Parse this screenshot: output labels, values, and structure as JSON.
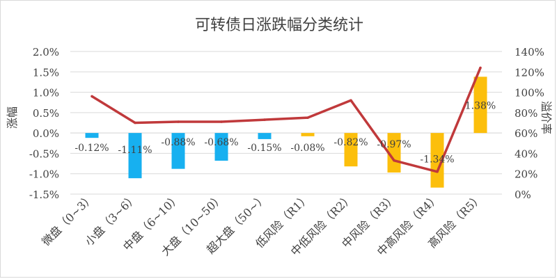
{
  "chart_data": {
    "type": "bar",
    "title": "可转债日涨跌幅分类统计",
    "ylabel": "涨幅",
    "y2label": "溢价率",
    "categories": [
      "微盘（0~3）",
      "小盘（3~6）",
      "中盘（6~10）",
      "大盘（10~50）",
      "超大盘（50~）",
      "低风险（R1）",
      "中低风险（R2）",
      "中风险（R3）",
      "中高风险（R4）",
      "高风险（R5）"
    ],
    "series": [
      {
        "kind": "bar",
        "values": [
          -0.12,
          -1.11,
          -0.88,
          -0.68,
          -0.15,
          -0.08,
          -0.82,
          -0.97,
          -1.34,
          1.38
        ],
        "labels": [
          "-0.12%",
          "-1.11%",
          "-0.88%",
          "-0.68%",
          "-0.15%",
          "-0.08%",
          "-0.82%",
          "-0.97%",
          "-1.34%",
          "1.38%"
        ],
        "colors": [
          "#17b0f0",
          "#17b0f0",
          "#17b0f0",
          "#17b0f0",
          "#17b0f0",
          "#fcbf0c",
          "#fcbf0c",
          "#fcbf0c",
          "#fcbf0c",
          "#fcbf0c"
        ]
      },
      {
        "kind": "line",
        "axis": "secondary",
        "color": "#c0393b",
        "values": [
          96,
          70,
          71,
          71,
          73,
          75,
          92,
          33,
          22,
          124
        ]
      }
    ],
    "y_ticks": [
      "2.0%",
      "1.5%",
      "1.0%",
      "0.5%",
      "0.0%",
      "-0.5%",
      "-1.0%",
      "-1.5%"
    ],
    "y2_ticks": [
      "140%",
      "120%",
      "100%",
      "80%",
      "60%",
      "40%",
      "20%",
      "0%"
    ],
    "ylim": [
      -1.5,
      2.0
    ],
    "y2lim": [
      0,
      140
    ],
    "grid": true,
    "legend": "none"
  }
}
